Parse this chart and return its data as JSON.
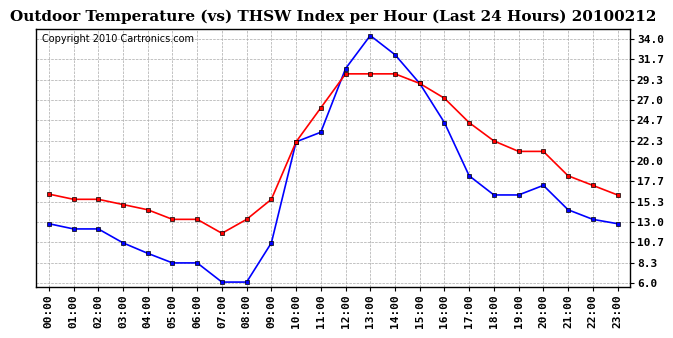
{
  "title": "Outdoor Temperature (vs) THSW Index per Hour (Last 24 Hours) 20100212",
  "copyright": "Copyright 2010 Cartronics.com",
  "background_color": "#ffffff",
  "grid_color": "#aaaaaa",
  "plot_bg_color": "#ffffff",
  "hours": [
    "00:00",
    "01:00",
    "02:00",
    "03:00",
    "04:00",
    "05:00",
    "06:00",
    "07:00",
    "08:00",
    "09:00",
    "10:00",
    "11:00",
    "12:00",
    "13:00",
    "14:00",
    "15:00",
    "16:00",
    "17:00",
    "18:00",
    "19:00",
    "20:00",
    "21:00",
    "22:00",
    "23:00"
  ],
  "temp_red": [
    16.2,
    15.6,
    15.6,
    15.0,
    14.4,
    13.3,
    13.3,
    11.7,
    13.3,
    15.6,
    22.2,
    26.1,
    30.0,
    30.0,
    30.0,
    28.9,
    27.2,
    24.4,
    22.3,
    21.1,
    21.1,
    18.3,
    17.2,
    16.1
  ],
  "thsw_blue": [
    12.8,
    12.2,
    12.2,
    10.6,
    9.4,
    8.3,
    8.3,
    6.1,
    6.1,
    10.6,
    22.2,
    23.3,
    30.6,
    34.4,
    32.2,
    28.9,
    24.4,
    18.3,
    16.1,
    16.1,
    17.2,
    14.4,
    13.3,
    12.8
  ],
  "y_ticks": [
    6.0,
    8.3,
    10.7,
    13.0,
    15.3,
    17.7,
    20.0,
    22.3,
    24.7,
    27.0,
    29.3,
    31.7,
    34.0
  ],
  "ylim": [
    5.5,
    35.2
  ],
  "red_color": "#ff0000",
  "blue_color": "#0000ff",
  "marker_color": "#000000",
  "title_fontsize": 11,
  "axis_label_fontsize": 8,
  "copyright_fontsize": 7
}
